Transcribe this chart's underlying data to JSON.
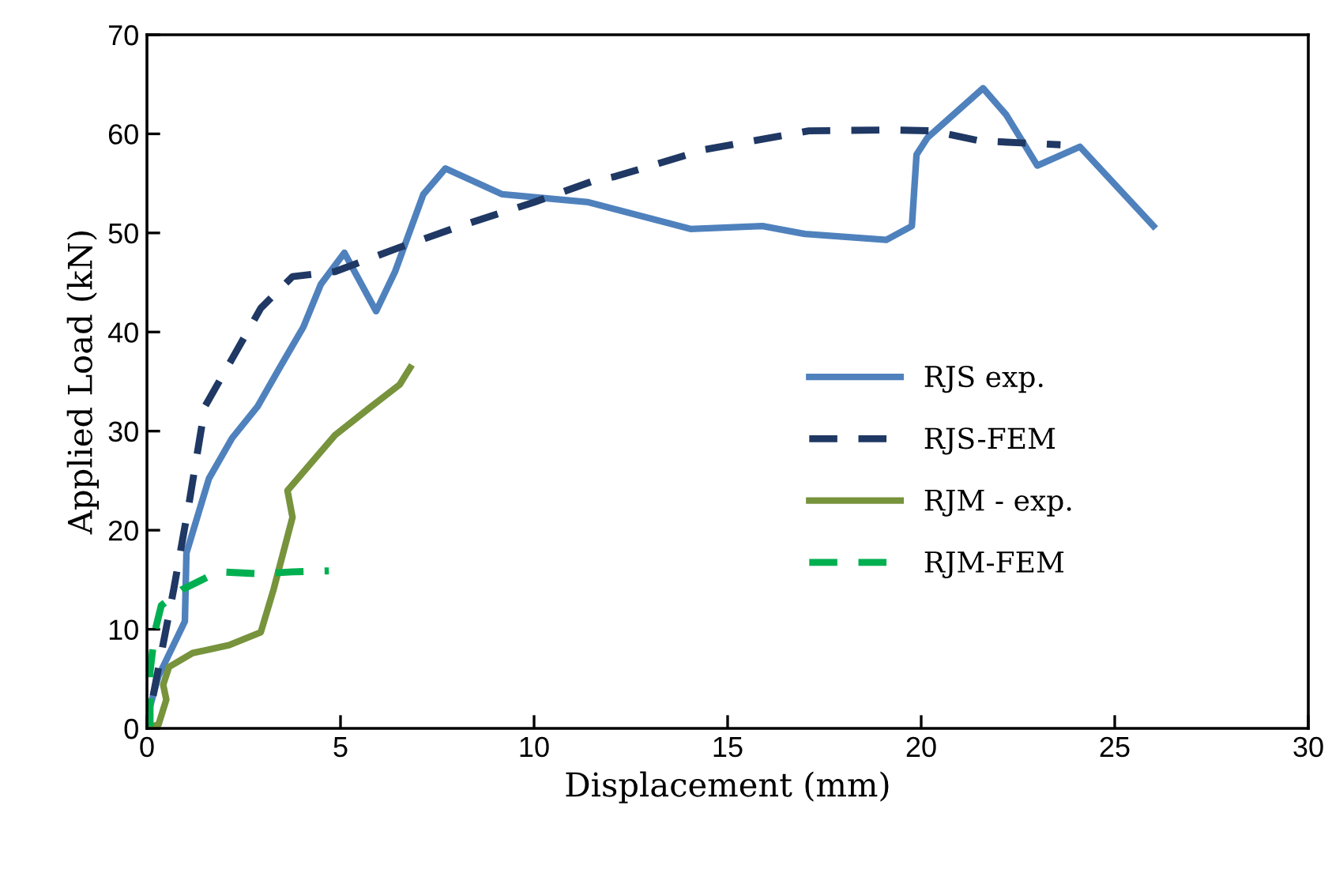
{
  "chart_data": {
    "type": "line",
    "xlabel": "Displacement (mm)",
    "ylabel": "Applied Load (kN)",
    "xlim": [
      0,
      30
    ],
    "xticks": [
      0,
      5,
      10,
      15,
      20,
      25,
      30
    ],
    "ylim": [
      0,
      70
    ],
    "yticks": [
      0,
      10,
      20,
      30,
      40,
      50,
      60,
      70
    ],
    "grid": false,
    "legend": "right",
    "marker": "none",
    "series": [
      {
        "name": "RJS exp.",
        "color": "#4f81bd",
        "line_style": "solid",
        "x": [
          0,
          0.08,
          0.29,
          0.98,
          1.02,
          1.6,
          2.2,
          2.86,
          3.43,
          4.04,
          4.49,
          5.1,
          5.92,
          6.41,
          7.14,
          7.71,
          9.18,
          11.4,
          14.04,
          15.9,
          17.0,
          19.1,
          19.76,
          19.88,
          20.16,
          21.6,
          22.2,
          23.0,
          24.1,
          26.0
        ],
        "values": [
          0,
          2.2,
          5.2,
          10.8,
          17.7,
          25.2,
          29.3,
          32.5,
          36.4,
          40.5,
          44.8,
          48.0,
          42.1,
          46.1,
          53.9,
          56.5,
          53.9,
          53.1,
          50.4,
          50.7,
          49.9,
          49.3,
          50.7,
          57.9,
          59.6,
          64.6,
          61.9,
          56.8,
          58.7,
          50.7
        ]
      },
      {
        "name": "RJS-FEM",
        "color": "#1f3864",
        "line_style": "dashed",
        "x": [
          0.16,
          0.69,
          1.1,
          1.5,
          2.2,
          2.94,
          3.76,
          4.86,
          6.5,
          8.1,
          10.0,
          11.5,
          12.1,
          14.4,
          17.1,
          19.2,
          20.3,
          21.5,
          23.6
        ],
        "values": [
          3.3,
          14.0,
          23.0,
          32.5,
          37.3,
          42.4,
          45.6,
          46.1,
          48.5,
          50.7,
          53.1,
          55.2,
          55.7,
          58.4,
          60.3,
          60.4,
          60.3,
          59.3,
          58.9
        ]
      },
      {
        "name": "RJM - exp.",
        "color": "#77933c",
        "line_style": "solid",
        "x": [
          0.08,
          0.3,
          0.5,
          0.42,
          0.57,
          1.18,
          2.12,
          2.94,
          3.27,
          3.76,
          3.63,
          4.86,
          5.8,
          6.53,
          6.8
        ],
        "values": [
          0.1,
          0.4,
          2.9,
          4.4,
          6.2,
          7.6,
          8.4,
          9.7,
          14.0,
          21.3,
          24.0,
          29.6,
          32.5,
          34.7,
          36.4
        ]
      },
      {
        "name": "RJM-FEM",
        "color": "#00b050",
        "line_style": "dashed",
        "x": [
          0.08,
          0.08,
          0.2,
          0.37,
          0.9,
          1.84,
          2.94,
          3.76,
          4.7
        ],
        "values": [
          0.2,
          5.7,
          9.7,
          12.4,
          14.0,
          15.8,
          15.6,
          15.8,
          15.9
        ]
      }
    ]
  }
}
